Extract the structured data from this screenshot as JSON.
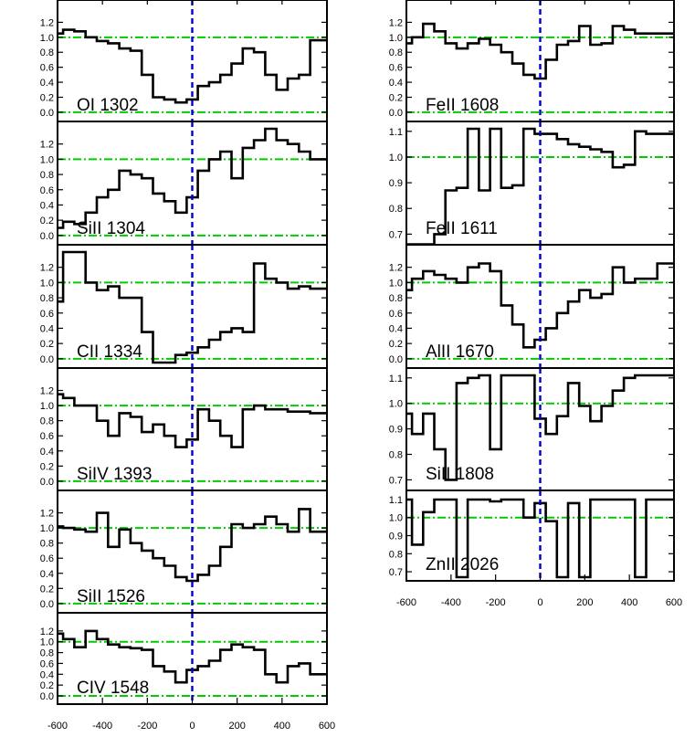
{
  "colors": {
    "frame": "#000000",
    "spectrum": "#000000",
    "continuum": "#00cc00",
    "zero_velocity": "#0000cc",
    "background": "#ffffff"
  },
  "chart_data": {
    "type": "line",
    "style": "histogram-step",
    "shared_x": {
      "lim": [
        -600,
        600
      ],
      "ticks": [
        -600,
        -400,
        -200,
        0,
        200,
        400,
        600
      ],
      "tick_labels": [
        "-600",
        "-400",
        "-200",
        "0",
        "200",
        "400",
        "600"
      ],
      "label": ""
    },
    "reference_lines": {
      "normalized_flux": [
        0.0,
        1.0
      ],
      "velocity": 0
    },
    "grid": false,
    "legend": "none",
    "panels": [
      {
        "column": "left",
        "label": "OI 1302",
        "ylim": [
          -0.05,
          1.4
        ],
        "ytick_labels": [
          "0.0",
          "0.2",
          "0.4",
          "0.6",
          "0.8",
          "1.0",
          "1.2"
        ],
        "x": [
          -600,
          -550,
          -500,
          -450,
          -400,
          -350,
          -300,
          -250,
          -200,
          -150,
          -100,
          -50,
          0,
          50,
          100,
          150,
          200,
          250,
          300,
          350,
          400,
          450,
          500,
          550,
          600
        ],
        "y": [
          1.05,
          1.1,
          1.08,
          1.0,
          0.95,
          0.92,
          0.85,
          0.82,
          0.5,
          0.2,
          0.17,
          0.13,
          0.17,
          0.35,
          0.4,
          0.5,
          0.65,
          0.85,
          0.8,
          0.5,
          0.3,
          0.45,
          0.5,
          0.96,
          0.96
        ]
      },
      {
        "column": "left",
        "label": "SiII 1304",
        "ylim": [
          -0.05,
          1.4
        ],
        "ytick_labels": [
          "0.0",
          "0.2",
          "0.4",
          "0.6",
          "0.8",
          "1.0",
          "1.2"
        ],
        "x": [
          -600,
          -550,
          -500,
          -450,
          -400,
          -350,
          -300,
          -250,
          -200,
          -150,
          -100,
          -50,
          0,
          50,
          100,
          150,
          200,
          250,
          300,
          350,
          400,
          450,
          500,
          550,
          600
        ],
        "y": [
          0.1,
          0.18,
          0.15,
          0.3,
          0.5,
          0.6,
          0.85,
          0.8,
          0.75,
          0.55,
          0.45,
          0.3,
          0.5,
          0.85,
          1.0,
          1.1,
          0.75,
          1.15,
          1.25,
          1.4,
          1.25,
          1.2,
          1.1,
          1.0,
          1.0
        ]
      },
      {
        "column": "left",
        "label": "CII 1334",
        "ylim": [
          -0.05,
          1.4
        ],
        "ytick_labels": [
          "0.0",
          "0.2",
          "0.4",
          "0.6",
          "0.8",
          "1.0",
          "1.2"
        ],
        "x": [
          -600,
          -550,
          -500,
          -450,
          -400,
          -350,
          -300,
          -250,
          -200,
          -150,
          -100,
          -50,
          0,
          50,
          100,
          150,
          200,
          250,
          300,
          350,
          400,
          450,
          500,
          550,
          600
        ],
        "y": [
          0.75,
          1.4,
          1.4,
          1.0,
          0.9,
          0.95,
          0.8,
          0.8,
          0.35,
          -0.05,
          -0.05,
          0.05,
          0.08,
          0.15,
          0.25,
          0.35,
          0.4,
          0.35,
          1.25,
          1.05,
          1.0,
          0.92,
          0.95,
          0.92,
          0.92
        ]
      },
      {
        "column": "left",
        "label": "SiIV 1393",
        "ylim": [
          -0.05,
          1.4
        ],
        "ytick_labels": [
          "0.0",
          "0.2",
          "0.4",
          "0.6",
          "0.8",
          "1.0",
          "1.2"
        ],
        "x": [
          -600,
          -550,
          -500,
          -450,
          -400,
          -350,
          -300,
          -250,
          -200,
          -150,
          -100,
          -50,
          0,
          50,
          100,
          150,
          200,
          250,
          300,
          350,
          400,
          450,
          500,
          550,
          600
        ],
        "y": [
          1.15,
          1.1,
          1.0,
          1.0,
          0.8,
          0.6,
          0.9,
          0.85,
          0.65,
          0.75,
          0.6,
          0.45,
          0.55,
          0.95,
          0.8,
          0.6,
          0.45,
          0.95,
          1.0,
          0.95,
          0.95,
          0.92,
          0.92,
          0.9,
          0.9
        ]
      },
      {
        "column": "left",
        "label": "SiII 1526",
        "ylim": [
          -0.05,
          1.4
        ],
        "ytick_labels": [
          "0.0",
          "0.2",
          "0.4",
          "0.6",
          "0.8",
          "1.0",
          "1.2"
        ],
        "x": [
          -600,
          -550,
          -500,
          -450,
          -400,
          -350,
          -300,
          -250,
          -200,
          -150,
          -100,
          -50,
          0,
          50,
          100,
          150,
          200,
          250,
          300,
          350,
          400,
          450,
          500,
          550,
          600
        ],
        "y": [
          1.02,
          1.0,
          0.98,
          0.95,
          1.2,
          0.75,
          0.98,
          0.8,
          0.7,
          0.6,
          0.5,
          0.35,
          0.3,
          0.38,
          0.5,
          0.75,
          1.05,
          1.0,
          1.05,
          1.15,
          1.05,
          0.95,
          1.25,
          0.95,
          0.95
        ]
      },
      {
        "column": "left",
        "label": "CIV 1548",
        "ylim": [
          -0.05,
          1.4
        ],
        "ytick_labels": [
          "0.0",
          "0.2",
          "0.4",
          "0.6",
          "0.8",
          "1.0",
          "1.2"
        ],
        "x": [
          -600,
          -550,
          -500,
          -450,
          -400,
          -350,
          -300,
          -250,
          -200,
          -150,
          -100,
          -50,
          0,
          50,
          100,
          150,
          200,
          250,
          300,
          350,
          400,
          450,
          500,
          550,
          600
        ],
        "y": [
          1.15,
          1.05,
          0.9,
          1.2,
          1.05,
          0.95,
          0.9,
          0.88,
          0.85,
          0.55,
          0.45,
          0.25,
          0.48,
          0.55,
          0.65,
          0.85,
          0.95,
          0.9,
          0.85,
          0.4,
          0.25,
          0.55,
          0.6,
          0.4,
          0.4
        ]
      },
      {
        "column": "right",
        "label": "FeII 1608",
        "ylim": [
          -0.05,
          1.4
        ],
        "ytick_labels": [
          "0.0",
          "0.2",
          "0.4",
          "0.6",
          "0.8",
          "1.0",
          "1.2"
        ],
        "x": [
          -600,
          -550,
          -500,
          -450,
          -400,
          -350,
          -300,
          -250,
          -200,
          -150,
          -100,
          -50,
          0,
          50,
          100,
          150,
          200,
          250,
          300,
          350,
          400,
          450,
          500,
          550,
          600
        ],
        "y": [
          0.92,
          1.0,
          1.18,
          1.08,
          0.92,
          0.85,
          0.92,
          0.98,
          0.9,
          0.8,
          0.65,
          0.5,
          0.45,
          0.7,
          0.9,
          0.95,
          1.15,
          0.9,
          0.92,
          1.15,
          1.1,
          1.05,
          1.05,
          1.05,
          1.05
        ]
      },
      {
        "column": "right",
        "label": "FeII 1611",
        "ylim": [
          0.68,
          1.11
        ],
        "ytick_labels": [
          "0.7",
          "0.8",
          "0.9",
          "1.0",
          "1.1"
        ],
        "x": [
          -600,
          -550,
          -500,
          -450,
          -400,
          -350,
          -300,
          -250,
          -200,
          -150,
          -100,
          -50,
          0,
          50,
          100,
          150,
          200,
          250,
          300,
          350,
          400,
          450,
          500,
          550,
          600
        ],
        "y": [
          0.65,
          0.65,
          0.66,
          0.7,
          0.87,
          0.88,
          1.11,
          0.87,
          1.11,
          0.88,
          0.89,
          1.11,
          1.09,
          1.09,
          1.07,
          1.05,
          1.04,
          1.03,
          1.02,
          0.96,
          0.97,
          1.1,
          1.09,
          1.09,
          1.09
        ]
      },
      {
        "column": "right",
        "label": "AlII 1670",
        "ylim": [
          -0.05,
          1.4
        ],
        "ytick_labels": [
          "0.0",
          "0.2",
          "0.4",
          "0.6",
          "0.8",
          "1.0",
          "1.2"
        ],
        "x": [
          -600,
          -550,
          -500,
          -450,
          -400,
          -350,
          -300,
          -250,
          -200,
          -150,
          -100,
          -50,
          0,
          50,
          100,
          150,
          200,
          250,
          300,
          350,
          400,
          450,
          500,
          550,
          600
        ],
        "y": [
          0.9,
          1.05,
          1.15,
          1.1,
          1.05,
          1.0,
          1.2,
          1.25,
          1.15,
          0.7,
          0.45,
          0.15,
          0.25,
          0.4,
          0.6,
          0.75,
          0.9,
          0.8,
          0.85,
          1.2,
          1.0,
          1.05,
          1.05,
          1.25,
          1.25
        ]
      },
      {
        "column": "right",
        "label": "SiII 1808",
        "ylim": [
          0.68,
          1.11
        ],
        "ytick_labels": [
          "0.7",
          "0.8",
          "0.9",
          "1.0",
          "1.1"
        ],
        "x": [
          -600,
          -550,
          -500,
          -450,
          -400,
          -350,
          -300,
          -250,
          -200,
          -150,
          -100,
          -50,
          0,
          50,
          100,
          150,
          200,
          250,
          300,
          350,
          400,
          450,
          500,
          550,
          600
        ],
        "y": [
          0.96,
          0.88,
          0.96,
          0.82,
          0.7,
          1.08,
          1.1,
          1.11,
          0.82,
          1.11,
          1.11,
          1.11,
          0.94,
          0.88,
          0.95,
          1.08,
          0.99,
          0.93,
          0.99,
          1.05,
          1.1,
          1.11,
          1.11,
          1.11,
          1.11
        ]
      },
      {
        "column": "right",
        "label": "ZnII 2026",
        "ylim": [
          0.68,
          1.11
        ],
        "ytick_labels": [
          "0.7",
          "0.8",
          "0.9",
          "1.0",
          "1.1"
        ],
        "x": [
          -600,
          -550,
          -500,
          -450,
          -400,
          -350,
          -300,
          -250,
          -200,
          -150,
          -100,
          -50,
          0,
          50,
          100,
          150,
          200,
          250,
          300,
          350,
          400,
          450,
          500,
          550,
          600
        ],
        "y": [
          1.1,
          0.85,
          1.03,
          1.1,
          1.1,
          0.67,
          1.1,
          1.1,
          1.09,
          1.1,
          1.1,
          1.0,
          1.08,
          0.98,
          0.67,
          1.08,
          0.67,
          1.1,
          1.1,
          1.1,
          1.1,
          0.67,
          1.1,
          1.1,
          1.1
        ]
      }
    ]
  }
}
